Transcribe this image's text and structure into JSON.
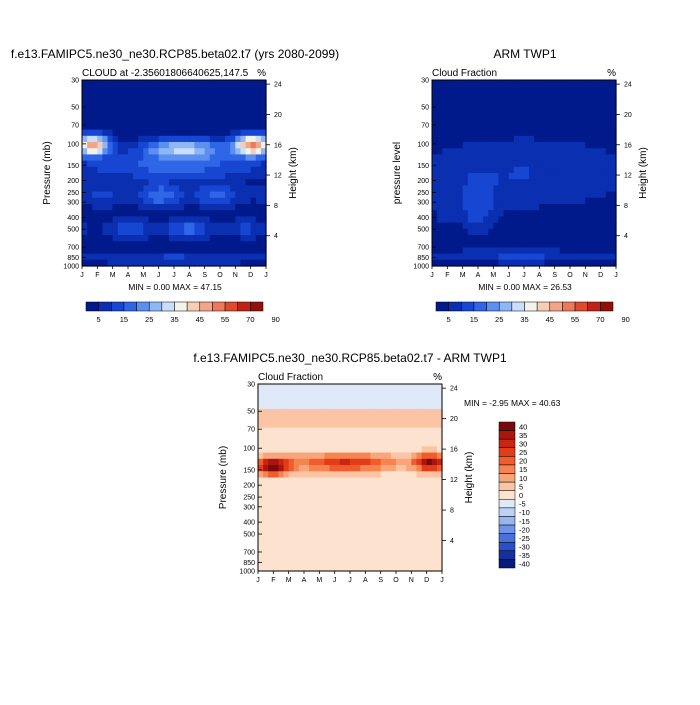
{
  "chart_data": [
    {
      "type": "heatmap",
      "title": "f.e13.FAMIPC5.ne30_ne30.RCP85.beta02.t7 (yrs 2080-2099)",
      "left_string": "CLOUD at -2.35601806640625,147.5",
      "right_string": "%",
      "ylabel": "Pressure (mb)",
      "ylabel_right": "Height (km)",
      "x_ticks": [
        "J",
        "F",
        "M",
        "A",
        "M",
        "J",
        "J",
        "A",
        "S",
        "O",
        "N",
        "D",
        "J"
      ],
      "y_ticks": [
        "30",
        "50",
        "70",
        "100",
        "150",
        "200",
        "250",
        "300",
        "400",
        "500",
        "700",
        "850",
        "1000"
      ],
      "height_ticks": [
        "24",
        "20",
        "16",
        "12",
        "8",
        "4"
      ],
      "min_max_label": "MIN =   0.00 MAX =   47.15",
      "colorbar_labels": [
        "5",
        "15",
        "25",
        "35",
        "45",
        "55",
        "70",
        "90"
      ],
      "colorbar_colors": [
        "#001a8c",
        "#0a2fb0",
        "#1746d2",
        "#2f66e8",
        "#5b8ff0",
        "#8fb6f5",
        "#c9defa",
        "#f3f3ea",
        "#f6cdb6",
        "#f3a58a",
        "#ec7a5a",
        "#dc4a30",
        "#bf2216",
        "#8f1208"
      ]
    },
    {
      "type": "heatmap",
      "title": "ARM TWP1",
      "left_string": "Cloud Fraction",
      "right_string": "%",
      "ylabel": "pressure level",
      "ylabel_right": "Height (km)",
      "x_ticks": [
        "J",
        "F",
        "M",
        "A",
        "M",
        "J",
        "J",
        "A",
        "S",
        "O",
        "N",
        "D",
        "J"
      ],
      "y_ticks": [
        "30",
        "50",
        "70",
        "100",
        "150",
        "200",
        "250",
        "300",
        "400",
        "500",
        "700",
        "850",
        "1000"
      ],
      "height_ticks": [
        "24",
        "20",
        "16",
        "12",
        "8",
        "4"
      ],
      "min_max_label": "MIN =   0.00 MAX =   26.53",
      "colorbar_labels": [
        "5",
        "15",
        "25",
        "35",
        "45",
        "55",
        "70",
        "90"
      ]
    },
    {
      "type": "heatmap",
      "title": "f.e13.FAMIPC5.ne30_ne30.RCP85.beta02.t7 - ARM TWP1",
      "left_string": "Cloud Fraction",
      "right_string": "%",
      "ylabel": "Pressure (mb)",
      "ylabel_right": "Height (km)",
      "x_ticks": [
        "J",
        "F",
        "M",
        "A",
        "M",
        "J",
        "J",
        "A",
        "S",
        "O",
        "N",
        "D",
        "J"
      ],
      "y_ticks": [
        "30",
        "50",
        "70",
        "100",
        "150",
        "200",
        "250",
        "300",
        "400",
        "500",
        "700",
        "850",
        "1000"
      ],
      "height_ticks": [
        "24",
        "20",
        "16",
        "12",
        "8",
        "4"
      ],
      "min_max_label": "MIN =  -2.95 MAX =  40.63",
      "colorbar_labels": [
        "40",
        "35",
        "30",
        "25",
        "20",
        "15",
        "10",
        "5",
        "0",
        "-5",
        "-10",
        "-15",
        "-20",
        "-25",
        "-30",
        "-35",
        "-40"
      ],
      "colorbar_colors": [
        "#7a0a0a",
        "#a8160f",
        "#c82612",
        "#e23d18",
        "#f05c2c",
        "#f6844f",
        "#f9a57a",
        "#fbc4a4",
        "#fde2cf",
        "#dfe9f8",
        "#bcd2f5",
        "#97b6ee",
        "#6f93e6",
        "#4a71da",
        "#2a4fc6",
        "#14309f",
        "#061c78"
      ]
    }
  ]
}
